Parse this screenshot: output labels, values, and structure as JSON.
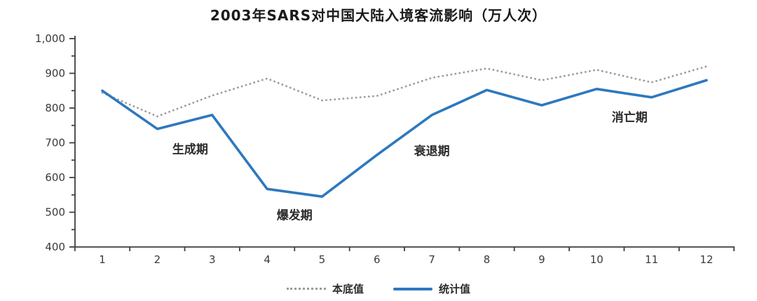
{
  "title": "2003年SARS对中国大陆入境客流影响（万人次）",
  "colors": {
    "statistical_line": "#2e78be",
    "baseline_line": "#9a9a9a",
    "axis": "#3f3f3f",
    "tick_text": "#3a3a3a",
    "annotation_text": "#2b2b2b",
    "title_text": "#1b1b1b"
  },
  "legend": {
    "baseline_label": "本底值",
    "statistical_label": "统计值"
  },
  "chart_data": {
    "type": "line",
    "title": "2003年SARS对中国大陆入境客流影响（万人次）",
    "xlabel": "",
    "ylabel": "",
    "categories": [
      1,
      2,
      3,
      4,
      5,
      6,
      7,
      8,
      9,
      10,
      11,
      12
    ],
    "x_tick_labels": [
      "1",
      "2",
      "3",
      "4",
      "5",
      "6",
      "7",
      "8",
      "9",
      "10",
      "11",
      "12"
    ],
    "ylim": [
      400,
      1000
    ],
    "y_ticks": [
      {
        "v": 400,
        "label": "400"
      },
      {
        "v": 500,
        "label": "500"
      },
      {
        "v": 600,
        "label": "600"
      },
      {
        "v": 700,
        "label": "700"
      },
      {
        "v": 800,
        "label": "800"
      },
      {
        "v": 900,
        "label": "900"
      },
      {
        "v": 1000,
        "label": "1,000"
      }
    ],
    "y_minor_ticks": [
      450,
      550,
      650,
      750,
      850,
      950
    ],
    "grid": false,
    "legend_position": "bottom",
    "series": [
      {
        "name": "本底值",
        "style": "dotted",
        "color": "#9a9a9a",
        "values": [
          844,
          776,
          836,
          885,
          822,
          835,
          887,
          914,
          880,
          910,
          874,
          920
        ]
      },
      {
        "name": "统计值",
        "style": "solid",
        "color": "#2e78be",
        "values": [
          850,
          740,
          780,
          567,
          545,
          665,
          780,
          852,
          808,
          855,
          831,
          880
        ]
      }
    ],
    "annotations": [
      {
        "label": "生成期",
        "month": 2.6,
        "value": 670
      },
      {
        "label": "爆发期",
        "month": 4.5,
        "value": 480
      },
      {
        "label": "衰退期",
        "month": 7.0,
        "value": 665
      },
      {
        "label": "消亡期",
        "month": 10.6,
        "value": 762
      }
    ]
  }
}
